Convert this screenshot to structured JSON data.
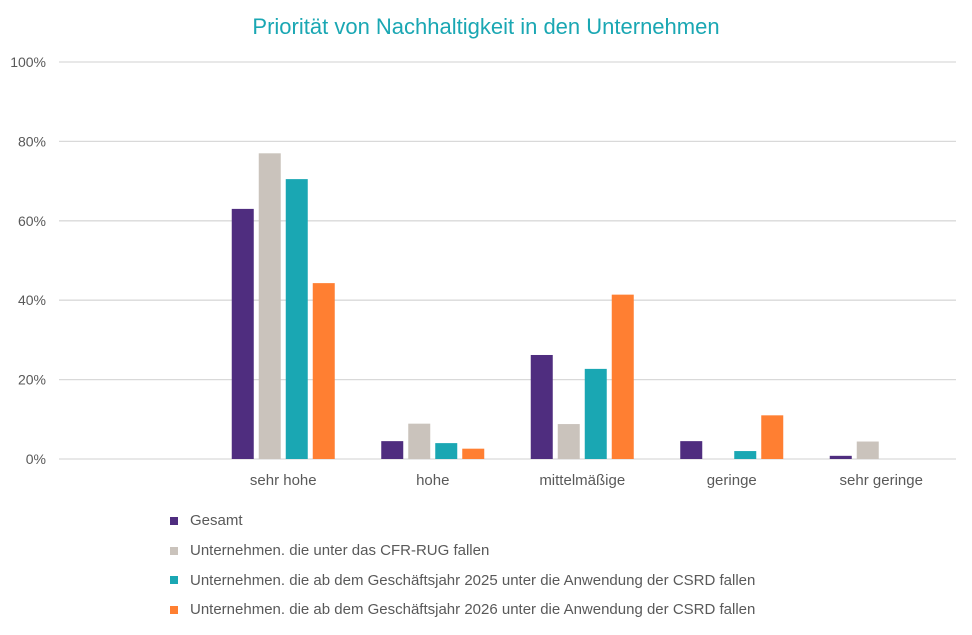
{
  "chart_data": {
    "type": "bar",
    "title": "Priorität von Nachhaltigkeit in den Unternehmen",
    "xlabel": "",
    "ylabel": "",
    "ylim": [
      0,
      100
    ],
    "yticks": [
      0,
      20,
      40,
      60,
      80,
      100
    ],
    "ytick_labels": [
      "0%",
      "20%",
      "40%",
      "60%",
      "80%",
      "100%"
    ],
    "grid": true,
    "legend_position": "bottom",
    "categories": [
      "",
      "sehr hohe",
      "hohe",
      "mittelmäßige",
      "geringe",
      "sehr geringe"
    ],
    "series": [
      {
        "name": "Gesamt",
        "color": "#4f2d7f",
        "values": [
          null,
          63,
          4.5,
          26.2,
          4.5,
          0.8
        ]
      },
      {
        "name": "Unternehmen. die unter das CFR-RUG fallen",
        "color": "#cac3bc",
        "values": [
          null,
          77,
          8.9,
          8.8,
          0,
          4.4
        ]
      },
      {
        "name": "Unternehmen. die ab dem Geschäftsjahr 2025 unter die Anwendung der CSRD fallen",
        "color": "#1aa7b3",
        "values": [
          null,
          70.5,
          4,
          22.7,
          2,
          0
        ]
      },
      {
        "name": "Unternehmen. die ab dem Geschäftsjahr 2026 unter die Anwendung der CSRD fallen",
        "color": "#ff7f32",
        "values": [
          null,
          44.3,
          2.6,
          41.4,
          11,
          0
        ]
      }
    ]
  }
}
